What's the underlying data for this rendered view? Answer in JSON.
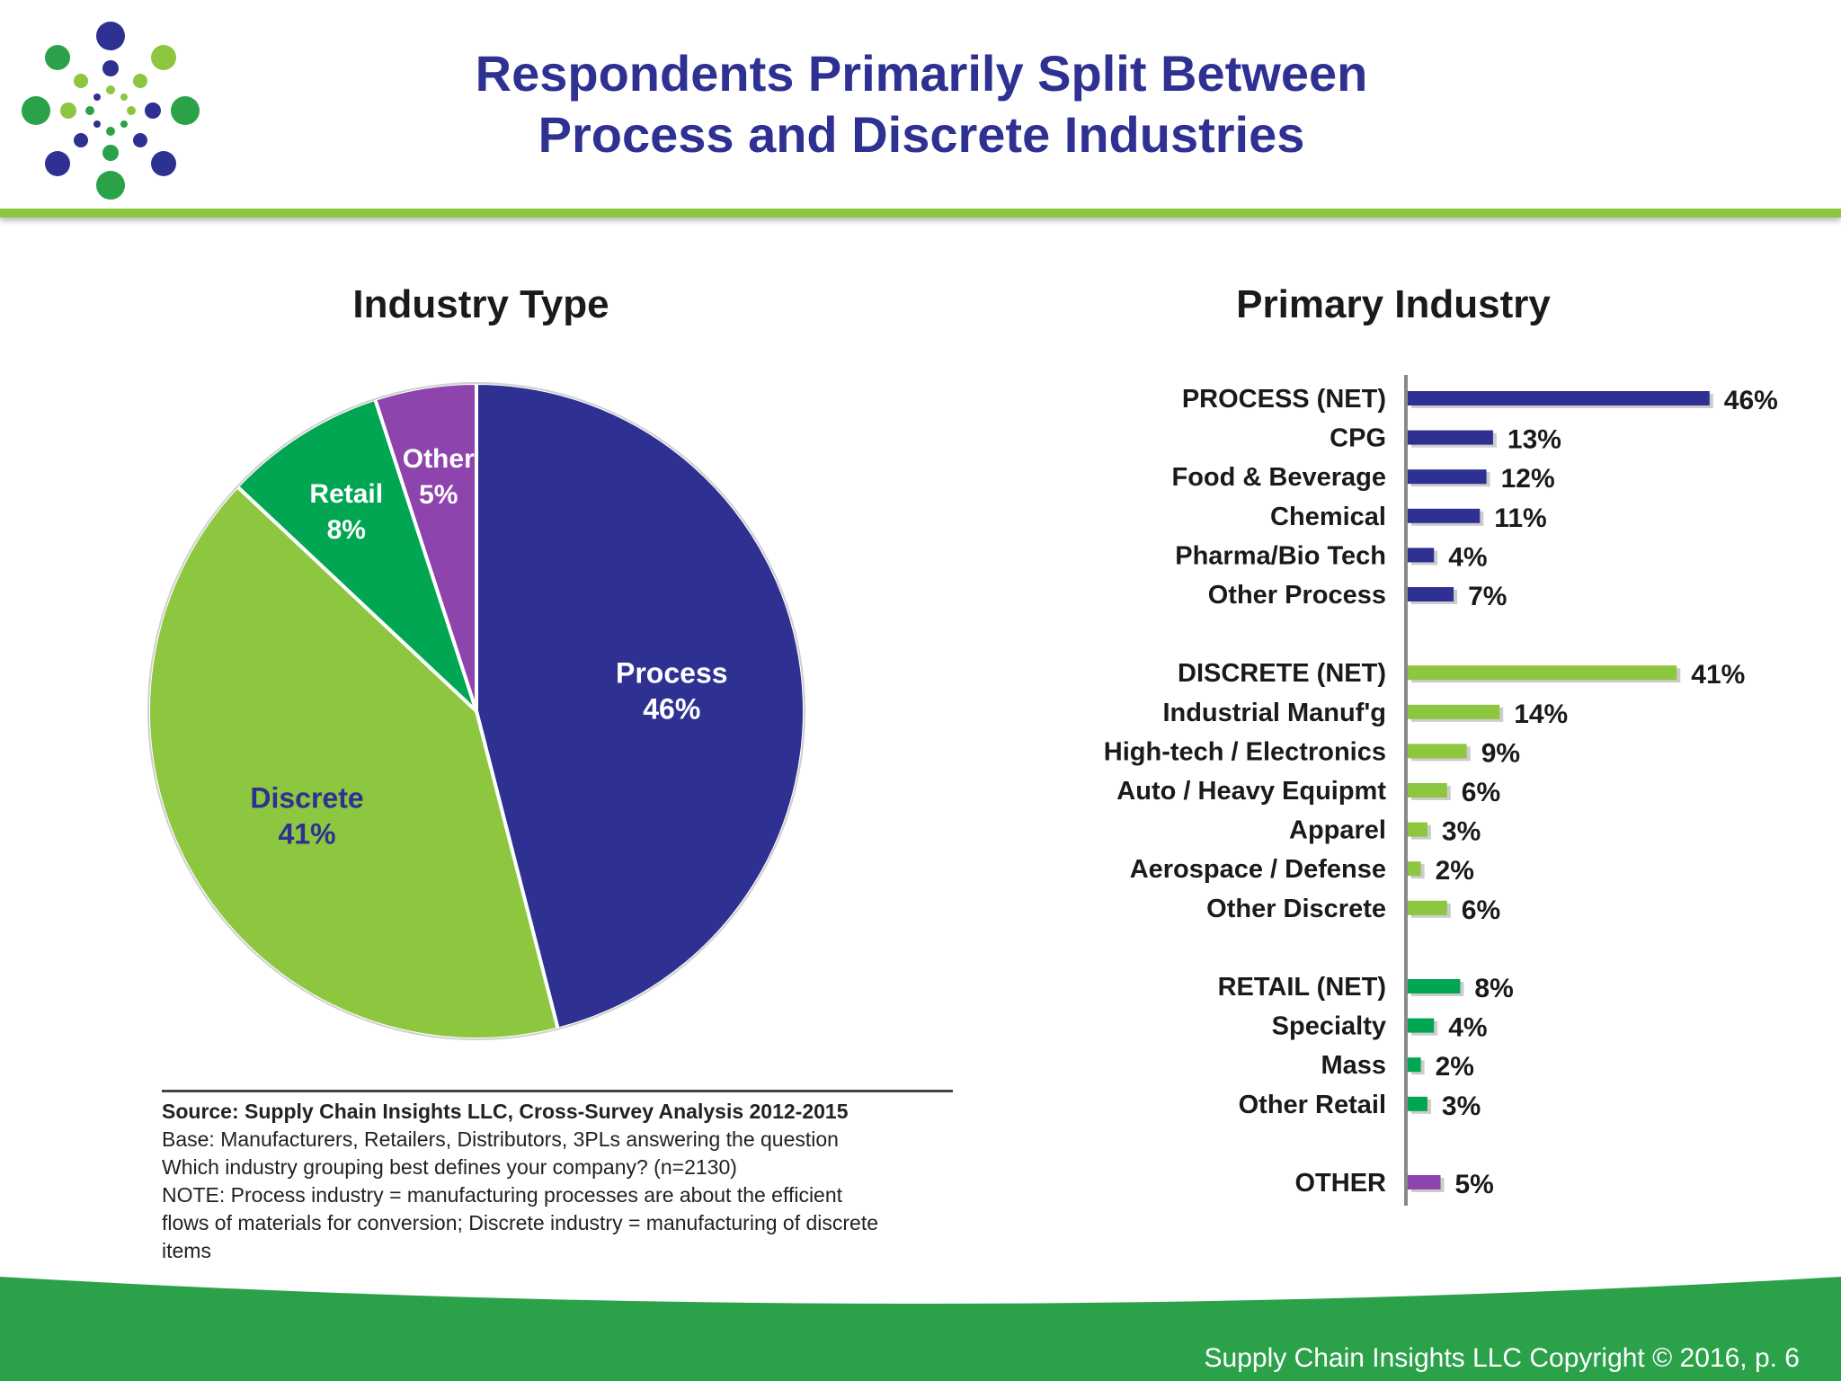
{
  "header": {
    "title_line1": "Respondents Primarily Split Between",
    "title_line2": "Process and Discrete Industries"
  },
  "colors": {
    "brand_blue": "#2E3192",
    "lime_green": "#8DC63F",
    "green": "#00A651",
    "purple": "#8E44AD",
    "footer_green": "#2BA24A"
  },
  "chart_data": [
    {
      "type": "pie",
      "title": "Industry Type",
      "slices": [
        {
          "label": "Process",
          "value": 46,
          "display": "46%",
          "color": "#2E3192",
          "label_color": "#ffffff"
        },
        {
          "label": "Discrete",
          "value": 41,
          "display": "41%",
          "color": "#8DC63F",
          "label_color": "#2E3192"
        },
        {
          "label": "Retail",
          "value": 8,
          "display": "8%",
          "color": "#00A651",
          "label_color": "#ffffff"
        },
        {
          "label": "Other",
          "value": 5,
          "display": "5%",
          "color": "#8E44AD",
          "label_color": "#ffffff"
        }
      ]
    },
    {
      "type": "bar",
      "orientation": "horizontal",
      "title": "Primary Industry",
      "groups": [
        {
          "color": "#2E3192",
          "items": [
            {
              "label": "PROCESS (NET)",
              "value": 46,
              "display": "46%",
              "net": true
            },
            {
              "label": "CPG",
              "value": 13,
              "display": "13%"
            },
            {
              "label": "Food & Beverage",
              "value": 12,
              "display": "12%"
            },
            {
              "label": "Chemical",
              "value": 11,
              "display": "11%"
            },
            {
              "label": "Pharma/Bio Tech",
              "value": 4,
              "display": "4%"
            },
            {
              "label": "Other Process",
              "value": 7,
              "display": "7%"
            }
          ]
        },
        {
          "color": "#8DC63F",
          "items": [
            {
              "label": "DISCRETE (NET)",
              "value": 41,
              "display": "41%",
              "net": true
            },
            {
              "label": "Industrial Manuf'g",
              "value": 14,
              "display": "14%"
            },
            {
              "label": "High-tech / Electronics",
              "value": 9,
              "display": "9%"
            },
            {
              "label": "Auto / Heavy Equipmt",
              "value": 6,
              "display": "6%"
            },
            {
              "label": "Apparel",
              "value": 3,
              "display": "3%"
            },
            {
              "label": "Aerospace / Defense",
              "value": 2,
              "display": "2%"
            },
            {
              "label": "Other Discrete",
              "value": 6,
              "display": "6%"
            }
          ]
        },
        {
          "color": "#00A651",
          "items": [
            {
              "label": "RETAIL (NET)",
              "value": 8,
              "display": "8%",
              "net": true
            },
            {
              "label": "Specialty",
              "value": 4,
              "display": "4%"
            },
            {
              "label": "Mass",
              "value": 2,
              "display": "2%"
            },
            {
              "label": "Other Retail",
              "value": 3,
              "display": "3%"
            }
          ]
        },
        {
          "color": "#8E44AD",
          "items": [
            {
              "label": "OTHER",
              "value": 5,
              "display": "5%",
              "net": true
            }
          ]
        }
      ]
    }
  ],
  "source": {
    "line1": "Source:  Supply Chain Insights LLC, Cross-Survey Analysis 2012-2015",
    "line2": "Base:  Manufacturers,  Retailers, Distributors, 3PLs answering the question",
    "line3": "Which industry grouping best defines your company? (n=2130)",
    "line4": "NOTE: Process industry = manufacturing processes are about the efficient",
    "line5": "flows of materials for conversion; Discrete industry = manufacturing of discrete",
    "line6": "items"
  },
  "footer": {
    "copyright": "Supply Chain Insights LLC Copyright © 2016, p. 6"
  }
}
